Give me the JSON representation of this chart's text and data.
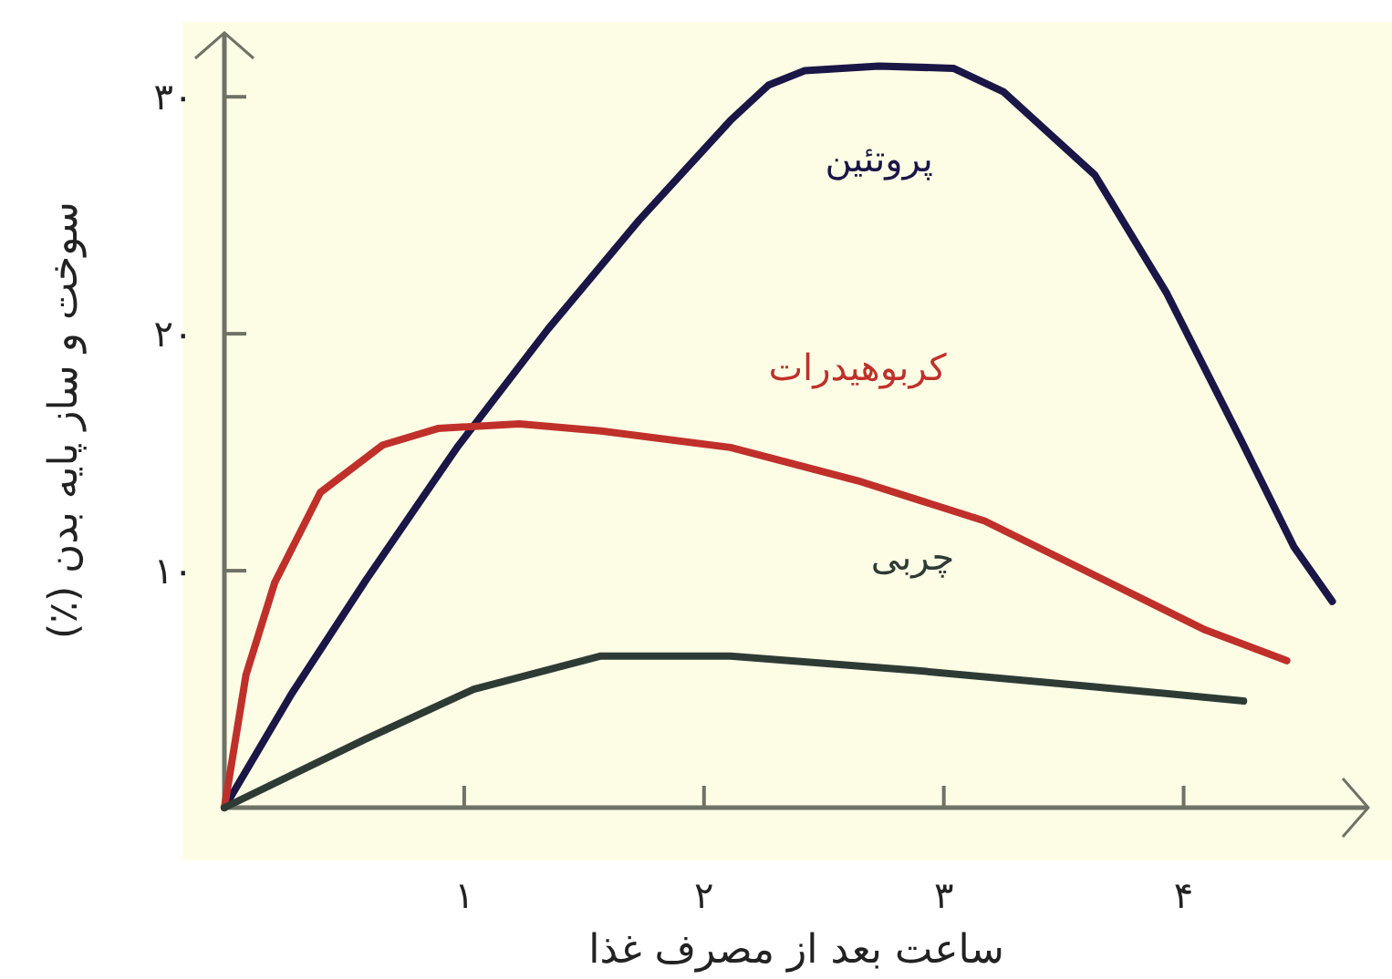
{
  "chart_data": {
    "type": "line",
    "xlabel": "ساعت بعد از مصرف غذا",
    "ylabel": "سوخت و ساز پایه بدن (٪)",
    "xlim": [
      0,
      4.77
    ],
    "ylim": [
      0,
      32.7
    ],
    "xticks": [
      {
        "value": 1,
        "label": "۱"
      },
      {
        "value": 2,
        "label": "۲"
      },
      {
        "value": 3,
        "label": "۳"
      },
      {
        "value": 4,
        "label": "۴"
      }
    ],
    "yticks": [
      {
        "value": 10,
        "label": "۱۰"
      },
      {
        "value": 20,
        "label": "۲۰"
      },
      {
        "value": 30,
        "label": "۳۰"
      }
    ],
    "series": [
      {
        "name": "پروتئین",
        "color": "#1a1646",
        "x": [
          0,
          0.28,
          0.59,
          0.97,
          1.35,
          1.73,
          2.11,
          2.27,
          2.42,
          2.73,
          3.04,
          3.25,
          3.63,
          3.93,
          4.24,
          4.46,
          4.62
        ],
        "values": [
          0,
          4.8,
          9.6,
          15.2,
          20.2,
          24.8,
          29.0,
          30.5,
          31.1,
          31.3,
          31.2,
          30.2,
          26.7,
          21.7,
          15.5,
          11.0,
          8.7
        ]
      },
      {
        "name": "کربوهیدرات",
        "color": "#c0302a",
        "x": [
          0,
          0.09,
          0.21,
          0.4,
          0.66,
          0.89,
          1.23,
          1.57,
          2.11,
          2.64,
          3.17,
          3.63,
          4.09,
          4.43
        ],
        "values": [
          0,
          5.6,
          9.5,
          13.3,
          15.3,
          16.0,
          16.2,
          15.9,
          15.2,
          13.8,
          12.1,
          9.8,
          7.5,
          6.2
        ]
      },
      {
        "name": "چربی",
        "color": "#2e3b35",
        "x": [
          0,
          0.59,
          1.04,
          1.57,
          2.11,
          2.87,
          3.63,
          4.25
        ],
        "values": [
          0,
          2.9,
          5.0,
          6.4,
          6.4,
          5.8,
          5.1,
          4.5
        ]
      }
    ]
  }
}
